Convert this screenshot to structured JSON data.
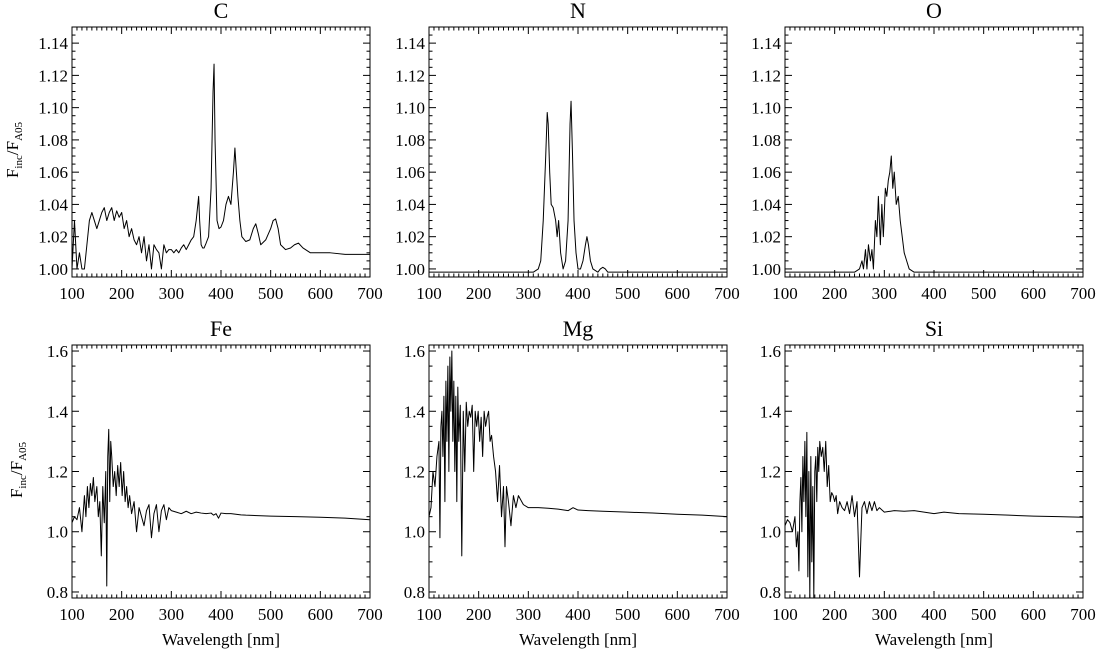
{
  "figure": {
    "ylabel_main": "F",
    "ylabel_sub1": "inc",
    "ylabel_slash": "/F",
    "ylabel_sub2": "A05",
    "xlabel": "Wavelength [nm]"
  },
  "chart_data": [
    {
      "type": "line",
      "title": "C",
      "xlim": [
        100,
        700
      ],
      "ylim": [
        0.995,
        1.15
      ],
      "xticks": [
        "100",
        "200",
        "300",
        "400",
        "500",
        "600",
        "700"
      ],
      "yticks": [
        "1.00",
        "1.02",
        "1.04",
        "1.06",
        "1.08",
        "1.10",
        "1.12",
        "1.14"
      ],
      "xlabel": "",
      "ylabel": "Finc/FA05",
      "series": [
        {
          "color": "#000000",
          "x": [
            100,
            105,
            110,
            115,
            120,
            125,
            130,
            135,
            140,
            145,
            150,
            155,
            160,
            165,
            170,
            175,
            180,
            185,
            190,
            195,
            200,
            205,
            210,
            215,
            220,
            225,
            230,
            235,
            240,
            245,
            250,
            255,
            260,
            265,
            270,
            275,
            280,
            285,
            290,
            295,
            300,
            305,
            310,
            315,
            320,
            325,
            330,
            335,
            340,
            345,
            350,
            355,
            357,
            360,
            363,
            366,
            370,
            375,
            380,
            384,
            386,
            388,
            392,
            396,
            400,
            405,
            410,
            415,
            420,
            425,
            428,
            431,
            434,
            438,
            442,
            450,
            458,
            465,
            470,
            475,
            480,
            490,
            500,
            505,
            510,
            515,
            520,
            530,
            540,
            548,
            556,
            565,
            580,
            600,
            620,
            650,
            680,
            700
          ],
          "y": [
            1.0,
            1.03,
            1.0,
            1.01,
            1.0,
            1.0,
            1.015,
            1.03,
            1.035,
            1.03,
            1.025,
            1.03,
            1.035,
            1.038,
            1.03,
            1.035,
            1.038,
            1.03,
            1.036,
            1.032,
            1.035,
            1.025,
            1.03,
            1.02,
            1.025,
            1.018,
            1.015,
            1.02,
            1.01,
            1.02,
            1.005,
            1.015,
            1.0,
            1.015,
            1.012,
            1.01,
            1.0,
            1.015,
            1.01,
            1.012,
            1.012,
            1.01,
            1.012,
            1.01,
            1.013,
            1.015,
            1.012,
            1.015,
            1.018,
            1.02,
            1.03,
            1.045,
            1.03,
            1.015,
            1.013,
            1.013,
            1.016,
            1.02,
            1.05,
            1.11,
            1.127,
            1.08,
            1.03,
            1.025,
            1.026,
            1.03,
            1.04,
            1.045,
            1.04,
            1.06,
            1.075,
            1.06,
            1.045,
            1.03,
            1.02,
            1.017,
            1.018,
            1.025,
            1.028,
            1.022,
            1.015,
            1.018,
            1.025,
            1.03,
            1.031,
            1.025,
            1.015,
            1.012,
            1.013,
            1.015,
            1.016,
            1.013,
            1.01,
            1.01,
            1.01,
            1.009,
            1.009,
            1.009
          ]
        }
      ]
    },
    {
      "type": "line",
      "title": "N",
      "xlim": [
        100,
        700
      ],
      "ylim": [
        0.995,
        1.15
      ],
      "xticks": [
        "100",
        "200",
        "300",
        "400",
        "500",
        "600",
        "700"
      ],
      "yticks": [
        "1.00",
        "1.02",
        "1.04",
        "1.06",
        "1.08",
        "1.10",
        "1.12",
        "1.14"
      ],
      "xlabel": "",
      "ylabel": "",
      "series": [
        {
          "color": "#000000",
          "x": [
            100,
            200,
            300,
            310,
            320,
            325,
            330,
            335,
            338,
            340,
            343,
            346,
            350,
            355,
            358,
            361,
            365,
            370,
            375,
            380,
            384,
            386,
            389,
            392,
            396,
            400,
            405,
            410,
            415,
            418,
            421,
            425,
            430,
            440,
            445,
            450,
            455,
            460,
            470,
            500,
            600,
            700
          ],
          "y": [
            0.998,
            0.998,
            0.998,
            0.998,
            1.0,
            1.005,
            1.03,
            1.07,
            1.097,
            1.09,
            1.06,
            1.04,
            1.038,
            1.03,
            1.02,
            1.03,
            1.01,
            1.0,
            1.005,
            1.03,
            1.09,
            1.104,
            1.07,
            1.03,
            1.01,
            1.0,
            1.0,
            1.005,
            1.015,
            1.02,
            1.015,
            1.005,
            1.0,
            0.998,
            1.0,
            1.001,
            1.0,
            0.998,
            0.998,
            0.998,
            0.998,
            0.998
          ]
        }
      ]
    },
    {
      "type": "line",
      "title": "O",
      "xlim": [
        100,
        700
      ],
      "ylim": [
        0.995,
        1.15
      ],
      "xticks": [
        "100",
        "200",
        "300",
        "400",
        "500",
        "600",
        "700"
      ],
      "yticks": [
        "1.00",
        "1.02",
        "1.04",
        "1.06",
        "1.08",
        "1.10",
        "1.12",
        "1.14"
      ],
      "xlabel": "",
      "ylabel": "",
      "series": [
        {
          "color": "#000000",
          "x": [
            100,
            200,
            240,
            250,
            255,
            258,
            262,
            265,
            268,
            272,
            275,
            278,
            282,
            285,
            288,
            292,
            295,
            298,
            302,
            305,
            308,
            311,
            314,
            317,
            320,
            324,
            328,
            332,
            336,
            340,
            345,
            350,
            360,
            400,
            500,
            700
          ],
          "y": [
            0.998,
            0.998,
            0.998,
            1.0,
            1.005,
            1.0,
            1.012,
            1.0,
            1.015,
            1.005,
            1.012,
            1.0,
            1.03,
            1.02,
            1.045,
            1.015,
            1.04,
            1.02,
            1.05,
            1.045,
            1.055,
            1.06,
            1.07,
            1.05,
            1.06,
            1.04,
            1.045,
            1.03,
            1.02,
            1.01,
            1.005,
            1.0,
            0.998,
            0.998,
            0.998,
            0.998
          ]
        }
      ]
    },
    {
      "type": "line",
      "title": "Fe",
      "xlim": [
        100,
        700
      ],
      "ylim": [
        0.78,
        1.62
      ],
      "xticks": [
        "100",
        "200",
        "300",
        "400",
        "500",
        "600",
        "700"
      ],
      "yticks": [
        "0.8",
        "1.0",
        "1.2",
        "1.4",
        "1.6"
      ],
      "xlabel": "Wavelength [nm]",
      "ylabel": "Finc/FA05",
      "series": [
        {
          "color": "#000000",
          "x": [
            100,
            105,
            110,
            115,
            120,
            125,
            128,
            131,
            134,
            137,
            140,
            143,
            146,
            150,
            153,
            156,
            159,
            162,
            165,
            168,
            170,
            172,
            174,
            176,
            178,
            180,
            183,
            186,
            189,
            192,
            195,
            198,
            201,
            204,
            207,
            210,
            213,
            216,
            220,
            225,
            230,
            235,
            240,
            245,
            250,
            255,
            260,
            265,
            270,
            275,
            280,
            285,
            290,
            295,
            300,
            310,
            320,
            330,
            340,
            350,
            360,
            370,
            380,
            385,
            390,
            395,
            400,
            410,
            420,
            430,
            440,
            450,
            500,
            550,
            600,
            650,
            700
          ],
          "y": [
            1.03,
            1.05,
            1.04,
            1.08,
            1.0,
            1.12,
            1.05,
            1.15,
            1.08,
            1.16,
            1.12,
            1.18,
            1.1,
            1.15,
            1.05,
            1.1,
            0.92,
            1.15,
            1.03,
            1.2,
            0.82,
            1.25,
            1.34,
            1.1,
            1.3,
            1.25,
            1.15,
            1.2,
            1.12,
            1.22,
            1.15,
            1.23,
            1.12,
            1.2,
            1.1,
            1.15,
            1.08,
            1.12,
            1.06,
            1.1,
            1.0,
            1.08,
            1.05,
            1.02,
            1.07,
            1.09,
            0.98,
            1.06,
            1.09,
            1.0,
            1.07,
            1.09,
            1.04,
            1.08,
            1.07,
            1.065,
            1.06,
            1.068,
            1.06,
            1.065,
            1.062,
            1.06,
            1.062,
            1.055,
            1.06,
            1.045,
            1.062,
            1.06,
            1.06,
            1.058,
            1.056,
            1.055,
            1.052,
            1.05,
            1.048,
            1.045,
            1.04
          ]
        }
      ]
    },
    {
      "type": "line",
      "title": "Mg",
      "xlim": [
        100,
        700
      ],
      "ylim": [
        0.78,
        1.62
      ],
      "xticks": [
        "100",
        "200",
        "300",
        "400",
        "500",
        "600",
        "700"
      ],
      "yticks": [
        "0.8",
        "1.0",
        "1.2",
        "1.4",
        "1.6"
      ],
      "xlabel": "Wavelength [nm]",
      "ylabel": "",
      "series": [
        {
          "color": "#000000",
          "x": [
            100,
            104,
            108,
            112,
            116,
            120,
            122,
            124,
            126,
            128,
            130,
            132,
            134,
            136,
            138,
            140,
            142,
            144,
            146,
            148,
            150,
            152,
            154,
            156,
            158,
            160,
            163,
            166,
            169,
            172,
            175,
            178,
            181,
            184,
            187,
            190,
            193,
            196,
            199,
            202,
            205,
            208,
            211,
            214,
            217,
            220,
            223,
            226,
            230,
            234,
            238,
            242,
            246,
            250,
            253,
            256,
            260,
            265,
            270,
            275,
            280,
            290,
            300,
            320,
            340,
            360,
            380,
            390,
            400,
            420,
            450,
            500,
            550,
            600,
            650,
            700
          ],
          "y": [
            1.05,
            1.08,
            1.2,
            1.15,
            1.25,
            1.3,
            0.98,
            1.35,
            1.4,
            1.25,
            1.45,
            1.1,
            1.5,
            1.3,
            1.55,
            1.2,
            1.58,
            1.4,
            1.6,
            1.3,
            1.5,
            1.2,
            1.45,
            1.1,
            1.48,
            1.3,
            1.42,
            0.92,
            1.4,
            1.2,
            1.43,
            1.35,
            1.4,
            1.38,
            1.42,
            1.2,
            1.4,
            1.35,
            1.4,
            1.3,
            1.38,
            1.25,
            1.4,
            1.35,
            1.38,
            1.4,
            1.3,
            1.32,
            1.25,
            1.2,
            1.1,
            1.22,
            1.05,
            1.15,
            0.95,
            1.15,
            1.1,
            1.02,
            1.12,
            1.08,
            1.12,
            1.09,
            1.08,
            1.08,
            1.078,
            1.075,
            1.07,
            1.08,
            1.072,
            1.07,
            1.068,
            1.065,
            1.062,
            1.058,
            1.055,
            1.05
          ]
        }
      ]
    },
    {
      "type": "line",
      "title": "Si",
      "xlim": [
        100,
        700
      ],
      "ylim": [
        0.78,
        1.62
      ],
      "xticks": [
        "100",
        "200",
        "300",
        "400",
        "500",
        "600",
        "700"
      ],
      "yticks": [
        "0.8",
        "1.0",
        "1.2",
        "1.4",
        "1.6"
      ],
      "xlabel": "Wavelength [nm]",
      "ylabel": "",
      "series": [
        {
          "color": "#000000",
          "x": [
            100,
            105,
            110,
            115,
            120,
            123,
            126,
            128,
            130,
            132,
            134,
            136,
            138,
            140,
            142,
            144,
            146,
            148,
            150,
            152,
            154,
            156,
            158,
            160,
            162,
            164,
            166,
            168,
            170,
            173,
            176,
            179,
            182,
            185,
            188,
            191,
            194,
            197,
            200,
            203,
            206,
            210,
            215,
            220,
            225,
            230,
            235,
            240,
            245,
            250,
            255,
            260,
            265,
            270,
            275,
            280,
            285,
            290,
            300,
            320,
            340,
            360,
            380,
            400,
            420,
            450,
            500,
            550,
            600,
            650,
            700
          ],
          "y": [
            1.02,
            1.04,
            1.03,
            1.0,
            1.05,
            0.95,
            1.0,
            0.87,
            1.1,
            1.18,
            1.0,
            1.25,
            1.1,
            1.3,
            1.05,
            1.33,
            0.85,
            1.2,
            0.78,
            1.25,
            0.9,
            1.15,
            0.78,
            1.2,
            1.25,
            1.1,
            1.28,
            1.2,
            1.3,
            1.25,
            1.28,
            1.2,
            1.3,
            1.15,
            1.22,
            1.1,
            1.13,
            1.12,
            1.1,
            1.12,
            1.06,
            1.1,
            1.08,
            1.07,
            1.1,
            1.06,
            1.12,
            1.05,
            1.1,
            0.85,
            1.08,
            1.1,
            1.06,
            1.1,
            1.07,
            1.1,
            1.07,
            1.08,
            1.065,
            1.07,
            1.068,
            1.07,
            1.065,
            1.06,
            1.065,
            1.06,
            1.058,
            1.055,
            1.052,
            1.05,
            1.048
          ]
        }
      ]
    }
  ]
}
